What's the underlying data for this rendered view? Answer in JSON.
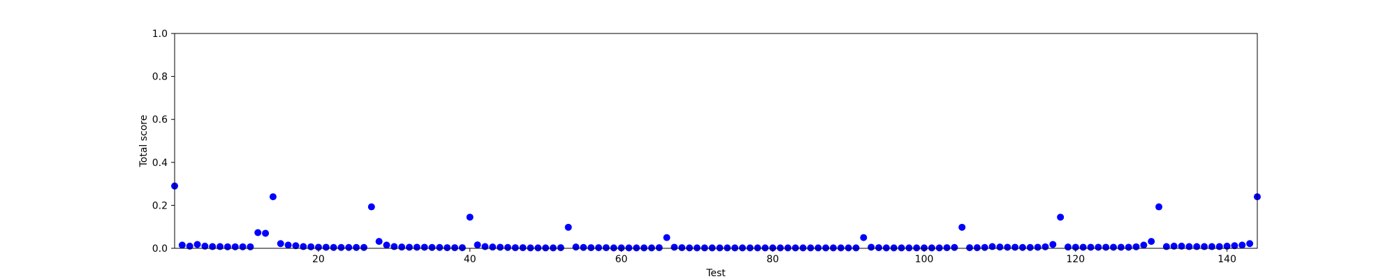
{
  "chart_data": {
    "type": "scatter",
    "title": "",
    "xlabel": "Test",
    "ylabel": "Total score",
    "xlim": [
      1,
      144
    ],
    "ylim": [
      0.0,
      1.0
    ],
    "x_ticks": [
      20,
      40,
      60,
      80,
      100,
      120,
      140
    ],
    "x_tick_labels": [
      "20",
      "40",
      "60",
      "80",
      "100",
      "120",
      "140"
    ],
    "y_ticks": [
      0.0,
      0.2,
      0.4,
      0.6,
      0.8,
      1.0
    ],
    "y_tick_labels": [
      "0.0",
      "0.2",
      "0.4",
      "0.6",
      "0.8",
      "1.0"
    ],
    "grid": false,
    "marker_color": "#0000ff",
    "series": [
      {
        "x": [
          1,
          2,
          3,
          4,
          5,
          6,
          7,
          8,
          9,
          10,
          11,
          12,
          13,
          14,
          15,
          16,
          17,
          18,
          19,
          20,
          21,
          22,
          23,
          24,
          25,
          26,
          27,
          28,
          29,
          30,
          31,
          32,
          33,
          34,
          35,
          36,
          37,
          38,
          39,
          40,
          41,
          42,
          43,
          44,
          45,
          46,
          47,
          48,
          49,
          50,
          51,
          52,
          53,
          54,
          55,
          56,
          57,
          58,
          59,
          60,
          61,
          62,
          63,
          64,
          65,
          66,
          67,
          68,
          69,
          70,
          71,
          72,
          73,
          74,
          75,
          76,
          77,
          78,
          79,
          80,
          81,
          82,
          83,
          84,
          85,
          86,
          87,
          88,
          89,
          90,
          91,
          92,
          93,
          94,
          95,
          96,
          97,
          98,
          99,
          100,
          101,
          102,
          103,
          104,
          105,
          106,
          107,
          108,
          109,
          110,
          111,
          112,
          113,
          114,
          115,
          116,
          117,
          118,
          119,
          120,
          121,
          122,
          123,
          124,
          125,
          126,
          127,
          128,
          129,
          130,
          131,
          132,
          133,
          134,
          135,
          136,
          137,
          138,
          139,
          140,
          141,
          142,
          143,
          144
        ],
        "y": [
          0.29,
          0.015,
          0.01,
          0.018,
          0.01,
          0.008,
          0.008,
          0.007,
          0.007,
          0.007,
          0.007,
          0.073,
          0.07,
          0.24,
          0.022,
          0.015,
          0.012,
          0.008,
          0.007,
          0.005,
          0.005,
          0.004,
          0.004,
          0.004,
          0.004,
          0.004,
          0.193,
          0.032,
          0.015,
          0.008,
          0.006,
          0.005,
          0.005,
          0.005,
          0.004,
          0.004,
          0.003,
          0.003,
          0.003,
          0.145,
          0.016,
          0.008,
          0.006,
          0.005,
          0.004,
          0.003,
          0.003,
          0.002,
          0.002,
          0.002,
          0.002,
          0.003,
          0.098,
          0.006,
          0.004,
          0.003,
          0.003,
          0.003,
          0.002,
          0.002,
          0.002,
          0.002,
          0.002,
          0.002,
          0.003,
          0.05,
          0.005,
          0.003,
          0.002,
          0.002,
          0.002,
          0.002,
          0.002,
          0.002,
          0.002,
          0.002,
          0.002,
          0.002,
          0.002,
          0.002,
          0.002,
          0.002,
          0.002,
          0.002,
          0.002,
          0.002,
          0.002,
          0.002,
          0.002,
          0.002,
          0.002,
          0.05,
          0.005,
          0.003,
          0.002,
          0.002,
          0.002,
          0.002,
          0.002,
          0.002,
          0.002,
          0.002,
          0.003,
          0.004,
          0.098,
          0.003,
          0.003,
          0.004,
          0.008,
          0.006,
          0.005,
          0.005,
          0.004,
          0.004,
          0.005,
          0.007,
          0.018,
          0.145,
          0.006,
          0.005,
          0.005,
          0.005,
          0.005,
          0.005,
          0.005,
          0.005,
          0.005,
          0.007,
          0.015,
          0.032,
          0.193,
          0.008,
          0.01,
          0.01,
          0.008,
          0.008,
          0.008,
          0.008,
          0.008,
          0.01,
          0.012,
          0.015,
          0.022,
          0.24
        ]
      }
    ]
  }
}
